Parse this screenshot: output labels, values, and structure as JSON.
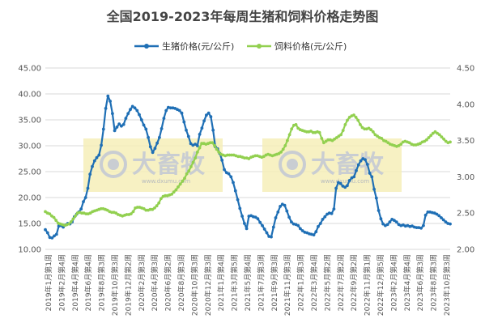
{
  "chart_data": {
    "type": "line",
    "title": "全国2019-2023年每周生猪和饲料价格走势图",
    "xlabel": "",
    "ylabel": "",
    "y_left_range": [
      10,
      45
    ],
    "y_left_ticks": [
      "10.00",
      "15.00",
      "20.00",
      "25.00",
      "30.00",
      "35.00",
      "40.00",
      "45.00"
    ],
    "y_right_range": [
      2.0,
      4.5
    ],
    "y_right_ticks": [
      "2.00",
      "2.50",
      "3.00",
      "3.50",
      "4.00",
      "4.50"
    ],
    "grid": true,
    "legend_position": "top-center",
    "x_tick_labels": [
      "2019年1月第1周",
      "2019年2月第4周",
      "2019年4月第4周",
      "2019年6月第4周",
      "2019年8月第3周",
      "2019年10月第3周",
      "2019年12月第2周",
      "2020年2月第3周",
      "2020年4月第3周",
      "2020年6月第2周",
      "2020年8月第3周",
      "2020年10月第3周",
      "2020年12月第3周",
      "2021年1月第4周",
      "2021年3月第5周",
      "2021年5月第4周",
      "2021年7月第3周",
      "2021年9月第3周",
      "2021年11月第3周",
      "2022年1月第3周",
      "2022年3月第4周",
      "2022年5月第2周",
      "2022年7月第2周",
      "2022年9月第2周",
      "2022年11月第1周",
      "2022年12月第5周",
      "2023年2月第4周",
      "2023年4月第4周",
      "2023年6月第3周",
      "2023年8月第3周",
      "2023年10月第3周"
    ],
    "series": [
      {
        "name": "生猪价格(元/公斤)",
        "axis": "left",
        "color": "#1f6fb5",
        "values": [
          13.8,
          13.2,
          12.3,
          12.2,
          12.6,
          12.9,
          14.5,
          14.6,
          14.3,
          14.7,
          15.0,
          14.9,
          15.3,
          16.3,
          16.8,
          17.2,
          17.8,
          19.2,
          20.0,
          21.8,
          24.5,
          26.0,
          27.1,
          27.7,
          28.2,
          30.1,
          33.2,
          37.2,
          39.6,
          38.6,
          36.2,
          32.9,
          33.6,
          34.2,
          33.8,
          34.1,
          35.3,
          36.2,
          37.0,
          37.6,
          37.3,
          36.8,
          36.0,
          35.0,
          34.0,
          33.2,
          31.6,
          29.8,
          28.7,
          29.5,
          30.5,
          31.6,
          33.3,
          35.3,
          36.8,
          37.4,
          37.3,
          37.3,
          37.2,
          37.0,
          36.8,
          36.3,
          34.6,
          33.0,
          31.8,
          30.4,
          30.1,
          30.3,
          30.0,
          32.2,
          33.4,
          34.8,
          35.9,
          36.3,
          35.6,
          33.0,
          29.8,
          29.4,
          28.5,
          27.2,
          25.4,
          24.8,
          24.6,
          24.0,
          22.9,
          21.3,
          19.6,
          17.9,
          16.4,
          15.0,
          14.0,
          16.4,
          16.5,
          16.3,
          16.2,
          15.9,
          15.2,
          14.6,
          13.9,
          13.2,
          12.5,
          12.4,
          14.3,
          16.1,
          17.2,
          18.3,
          18.7,
          18.5,
          17.4,
          16.2,
          15.3,
          14.9,
          14.8,
          14.6,
          14.0,
          13.6,
          13.3,
          13.2,
          13.0,
          12.9,
          12.8,
          13.4,
          14.4,
          15.0,
          15.8,
          16.3,
          16.8,
          17.0,
          16.9,
          17.8,
          21.8,
          22.9,
          22.7,
          22.2,
          22.0,
          22.3,
          23.3,
          23.8,
          24.0,
          25.2,
          26.3,
          27.1,
          27.5,
          27.3,
          26.4,
          24.7,
          24.0,
          21.6,
          19.9,
          17.5,
          15.9,
          14.9,
          14.6,
          14.8,
          15.3,
          15.8,
          15.6,
          15.3,
          14.8,
          14.6,
          14.7,
          14.5,
          14.6,
          14.4,
          14.5,
          14.3,
          14.2,
          14.2,
          14.1,
          14.6,
          16.6,
          17.2,
          17.2,
          17.1,
          17.0,
          16.8,
          16.5,
          16.1,
          15.7,
          15.3,
          15.0,
          14.9
        ]
      },
      {
        "name": "饲料价格(元/公斤)",
        "axis": "right",
        "color": "#92d050",
        "values": [
          2.52,
          2.5,
          2.49,
          2.46,
          2.44,
          2.4,
          2.36,
          2.35,
          2.34,
          2.33,
          2.34,
          2.35,
          2.38,
          2.42,
          2.46,
          2.5,
          2.51,
          2.5,
          2.5,
          2.49,
          2.49,
          2.5,
          2.52,
          2.53,
          2.54,
          2.55,
          2.56,
          2.56,
          2.55,
          2.54,
          2.52,
          2.51,
          2.51,
          2.5,
          2.48,
          2.47,
          2.46,
          2.47,
          2.48,
          2.48,
          2.49,
          2.52,
          2.57,
          2.58,
          2.58,
          2.57,
          2.56,
          2.54,
          2.54,
          2.55,
          2.55,
          2.57,
          2.6,
          2.64,
          2.7,
          2.73,
          2.74,
          2.74,
          2.75,
          2.76,
          2.79,
          2.82,
          2.86,
          2.9,
          2.94,
          2.98,
          3.04,
          3.08,
          3.14,
          3.2,
          3.26,
          3.34,
          3.4,
          3.46,
          3.46,
          3.45,
          3.46,
          3.47,
          3.47,
          3.43,
          3.38,
          3.34,
          3.31,
          3.3,
          3.29,
          3.3,
          3.3,
          3.3,
          3.3,
          3.29,
          3.28,
          3.28,
          3.27,
          3.26,
          3.26,
          3.25,
          3.27,
          3.28,
          3.29,
          3.29,
          3.28,
          3.27,
          3.28,
          3.3,
          3.31,
          3.3,
          3.29,
          3.3,
          3.31,
          3.32,
          3.34,
          3.38,
          3.43,
          3.5,
          3.58,
          3.66,
          3.71,
          3.72,
          3.67,
          3.65,
          3.64,
          3.63,
          3.62,
          3.62,
          3.63,
          3.61,
          3.61,
          3.62,
          3.61,
          3.53,
          3.47,
          3.49,
          3.51,
          3.51,
          3.5,
          3.52,
          3.54,
          3.56,
          3.58,
          3.64,
          3.72,
          3.78,
          3.82,
          3.84,
          3.85,
          3.82,
          3.78,
          3.72,
          3.68,
          3.66,
          3.66,
          3.67,
          3.65,
          3.62,
          3.58,
          3.56,
          3.54,
          3.53,
          3.5,
          3.49,
          3.47,
          3.45,
          3.44,
          3.43,
          3.42,
          3.43,
          3.45,
          3.48,
          3.49,
          3.48,
          3.47,
          3.45,
          3.44,
          3.44,
          3.45,
          3.46,
          3.48,
          3.49,
          3.51,
          3.54,
          3.57,
          3.6,
          3.62,
          3.6,
          3.58,
          3.55,
          3.52,
          3.49,
          3.47,
          3.48
        ]
      }
    ],
    "watermark": {
      "brand": "大畜牧",
      "url": "www.dxumu.com"
    }
  }
}
